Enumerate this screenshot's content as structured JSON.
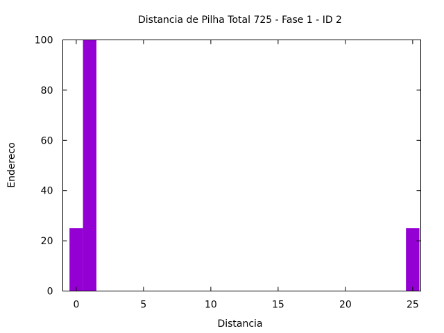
{
  "chart_data": {
    "type": "bar",
    "title": "Distancia de Pilha Total 725 - Fase  1 - ID 2",
    "xlabel": "Distancia",
    "ylabel": "Endereco",
    "xlim": [
      -1,
      25.6
    ],
    "ylim": [
      0,
      100
    ],
    "xticks": [
      0,
      5,
      10,
      15,
      20,
      25
    ],
    "yticks": [
      0,
      20,
      40,
      60,
      80,
      100
    ],
    "bar_width": 1,
    "color": "#9400d3",
    "grid": false,
    "legend": "none",
    "x": [
      0,
      1,
      25
    ],
    "values": [
      25,
      100,
      25
    ]
  }
}
